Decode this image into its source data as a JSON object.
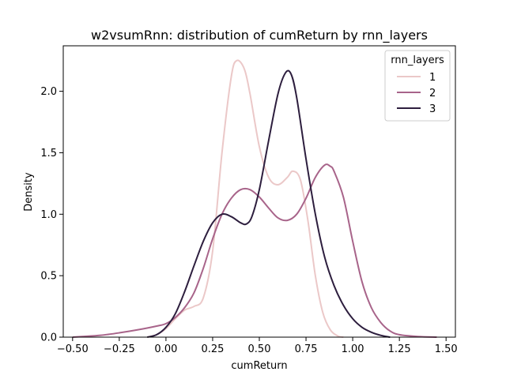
{
  "chart_data": {
    "type": "line",
    "title": "w2vsumRnn: distribution of cumReturn by rnn_layers",
    "xlabel": "cumReturn",
    "ylabel": "Density",
    "xlim": [
      -0.55,
      1.55
    ],
    "ylim": [
      0,
      2.37
    ],
    "xticks": [
      "−0.50",
      "−0.25",
      "0.00",
      "0.25",
      "0.50",
      "0.75",
      "1.00",
      "1.25",
      "1.50"
    ],
    "xtick_values": [
      -0.5,
      -0.25,
      0.0,
      0.25,
      0.5,
      0.75,
      1.0,
      1.25,
      1.5
    ],
    "yticks": [
      "0.0",
      "0.5",
      "1.0",
      "1.5",
      "2.0"
    ],
    "ytick_values": [
      0.0,
      0.5,
      1.0,
      1.5,
      2.0
    ],
    "grid": false,
    "legend": {
      "title": "rnn_layers",
      "placement": "top-right"
    },
    "series": [
      {
        "name": "1",
        "color": "#ebc8c8",
        "points": [
          [
            -0.1,
            0.0
          ],
          [
            -0.05,
            0.02
          ],
          [
            0.0,
            0.07
          ],
          [
            0.05,
            0.15
          ],
          [
            0.1,
            0.22
          ],
          [
            0.15,
            0.25
          ],
          [
            0.2,
            0.32
          ],
          [
            0.25,
            0.7
          ],
          [
            0.3,
            1.5
          ],
          [
            0.35,
            2.12
          ],
          [
            0.38,
            2.25
          ],
          [
            0.42,
            2.18
          ],
          [
            0.45,
            1.98
          ],
          [
            0.5,
            1.55
          ],
          [
            0.55,
            1.3
          ],
          [
            0.6,
            1.24
          ],
          [
            0.65,
            1.3
          ],
          [
            0.68,
            1.35
          ],
          [
            0.72,
            1.28
          ],
          [
            0.76,
            0.95
          ],
          [
            0.8,
            0.5
          ],
          [
            0.84,
            0.2
          ],
          [
            0.88,
            0.06
          ],
          [
            0.92,
            0.01
          ],
          [
            0.95,
            0.0
          ]
        ]
      },
      {
        "name": "2",
        "color": "#a8648a",
        "points": [
          [
            -0.5,
            0.0
          ],
          [
            -0.45,
            0.005
          ],
          [
            -0.35,
            0.015
          ],
          [
            -0.25,
            0.035
          ],
          [
            -0.15,
            0.06
          ],
          [
            -0.05,
            0.09
          ],
          [
            0.0,
            0.11
          ],
          [
            0.05,
            0.16
          ],
          [
            0.1,
            0.24
          ],
          [
            0.15,
            0.36
          ],
          [
            0.2,
            0.56
          ],
          [
            0.25,
            0.8
          ],
          [
            0.3,
            1.0
          ],
          [
            0.35,
            1.13
          ],
          [
            0.4,
            1.2
          ],
          [
            0.45,
            1.2
          ],
          [
            0.5,
            1.14
          ],
          [
            0.55,
            1.05
          ],
          [
            0.6,
            0.97
          ],
          [
            0.65,
            0.95
          ],
          [
            0.7,
            1.0
          ],
          [
            0.75,
            1.13
          ],
          [
            0.8,
            1.3
          ],
          [
            0.85,
            1.4
          ],
          [
            0.88,
            1.39
          ],
          [
            0.9,
            1.35
          ],
          [
            0.95,
            1.14
          ],
          [
            1.0,
            0.78
          ],
          [
            1.05,
            0.45
          ],
          [
            1.1,
            0.24
          ],
          [
            1.15,
            0.12
          ],
          [
            1.2,
            0.05
          ],
          [
            1.25,
            0.02
          ],
          [
            1.35,
            0.005
          ],
          [
            1.45,
            0.0
          ]
        ]
      },
      {
        "name": "3",
        "color": "#2d1e3e",
        "points": [
          [
            -0.1,
            0.0
          ],
          [
            -0.05,
            0.02
          ],
          [
            0.0,
            0.08
          ],
          [
            0.05,
            0.19
          ],
          [
            0.1,
            0.37
          ],
          [
            0.15,
            0.58
          ],
          [
            0.2,
            0.78
          ],
          [
            0.25,
            0.93
          ],
          [
            0.3,
            1.0
          ],
          [
            0.35,
            0.98
          ],
          [
            0.4,
            0.93
          ],
          [
            0.43,
            0.92
          ],
          [
            0.46,
            0.98
          ],
          [
            0.5,
            1.2
          ],
          [
            0.55,
            1.6
          ],
          [
            0.6,
            1.98
          ],
          [
            0.64,
            2.15
          ],
          [
            0.67,
            2.14
          ],
          [
            0.7,
            1.95
          ],
          [
            0.75,
            1.45
          ],
          [
            0.8,
            1.0
          ],
          [
            0.85,
            0.65
          ],
          [
            0.9,
            0.42
          ],
          [
            0.95,
            0.26
          ],
          [
            1.0,
            0.15
          ],
          [
            1.05,
            0.08
          ],
          [
            1.1,
            0.04
          ],
          [
            1.15,
            0.015
          ],
          [
            1.2,
            0.0
          ]
        ]
      }
    ]
  }
}
